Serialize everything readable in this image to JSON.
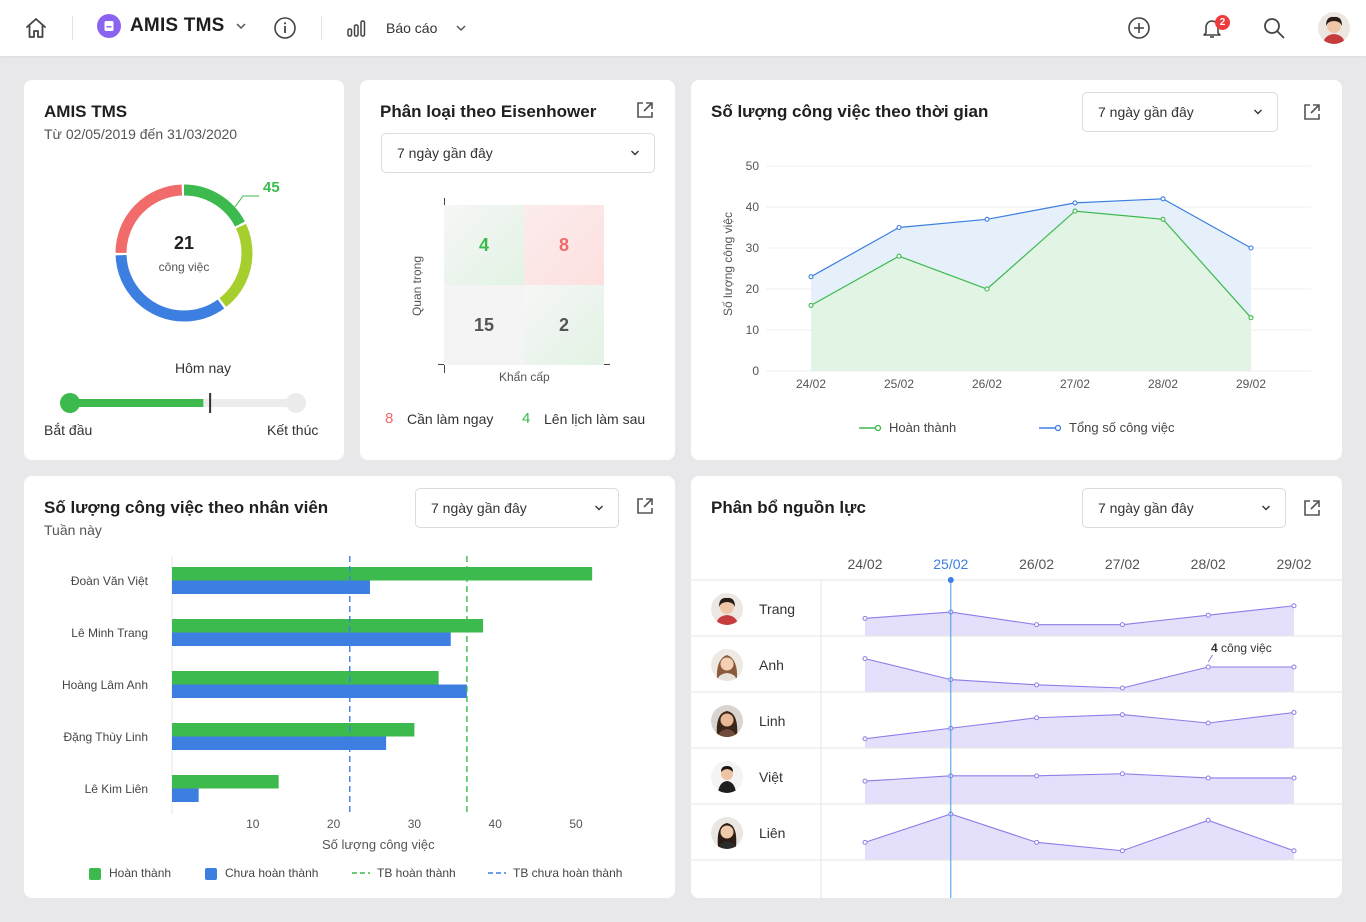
{
  "header": {
    "app_name": "AMIS TMS",
    "report_label": "Báo cáo",
    "notification_count": "2",
    "app_color": "#8a63f0"
  },
  "summary": {
    "title": "AMIS TMS",
    "date_range": "Từ 02/05/2019 đến 31/03/2020",
    "total": "21",
    "total_unit": "công việc",
    "callout_value": "45",
    "today_label": "Hôm nay",
    "start_label": "Bắt đầu",
    "end_label": "Kết thúc",
    "progress_fraction": 0.59,
    "today_fraction": 0.62,
    "donut": [
      {
        "color": "#3dba4e",
        "value": 0.18
      },
      {
        "color": "#a6cf2e",
        "value": 0.22
      },
      {
        "color": "#3d7fe0",
        "value": 0.35
      },
      {
        "color": "#f16b6b",
        "value": 0.25
      }
    ]
  },
  "eisenhower": {
    "title": "Phân loại theo Eisenhower",
    "filter": "7 ngày gần đây",
    "y_label": "Quan trọng",
    "x_label": "Khẩn cấp",
    "cells": {
      "top_left": "4",
      "top_right": "8",
      "bottom_left": "15",
      "bottom_right": "2"
    },
    "legend": [
      {
        "value": "8",
        "label": "Cần làm ngay",
        "color": "#f16b6b"
      },
      {
        "value": "4",
        "label": "Lên lịch làm sau",
        "color": "#3dba4e"
      }
    ]
  },
  "time_chart": {
    "title": "Số lượng công việc theo thời gian",
    "filter": "7 ngày gần đây",
    "legend_done": "Hoàn thành",
    "legend_total": "Tổng số công việc"
  },
  "staff_chart": {
    "title": "Số lượng công việc theo nhân viên",
    "subtitle": "Tuần này",
    "filter": "7 ngày gần đây",
    "legend": {
      "done": "Hoàn thành",
      "undone": "Chưa hoàn thành",
      "avg_done": "TB hoàn thành",
      "avg_undone": "TB chưa hoàn thành"
    }
  },
  "resource": {
    "title": "Phân bổ nguồn lực",
    "filter": "7 ngày gần đây",
    "dates": [
      "24/02",
      "25/02",
      "26/02",
      "27/02",
      "28/02",
      "29/02"
    ],
    "highlight_date_index": 1,
    "tooltip_value": "4",
    "tooltip_text": "công việc",
    "people": [
      "Trang",
      "Anh",
      "Linh",
      "Việt",
      "Liên"
    ]
  },
  "chart_data": [
    {
      "type": "line",
      "title": "Số lượng công việc theo thời gian",
      "categories": [
        "24/02",
        "25/02",
        "26/02",
        "27/02",
        "28/02",
        "29/02"
      ],
      "ylabel": "Số lượng công việc",
      "ylim": [
        0,
        50
      ],
      "yticks": [
        0,
        10,
        20,
        30,
        40,
        50
      ],
      "series": [
        {
          "name": "Hoàn thành",
          "values": [
            16,
            28,
            20,
            39,
            37,
            13
          ],
          "color": "#3dba4e"
        },
        {
          "name": "Tổng số công việc",
          "values": [
            23,
            35,
            37,
            41,
            42,
            30
          ],
          "color": "#3d7fe0"
        }
      ]
    },
    {
      "type": "bar",
      "orientation": "horizontal",
      "title": "Số lượng công việc theo nhân viên",
      "categories": [
        "Đoàn Văn Việt",
        "Lê Minh Trang",
        "Hoàng Lâm Anh",
        "Đặng Thùy Linh",
        "Lê Kim Liên"
      ],
      "xlabel": "Số lượng công việc",
      "xlim": [
        0,
        52
      ],
      "xticks": [
        10,
        20,
        30,
        40,
        50
      ],
      "series": [
        {
          "name": "Hoàn thành",
          "values": [
            52,
            38.5,
            33,
            30,
            13.2
          ],
          "color": "#3dba4e"
        },
        {
          "name": "Chưa hoàn thành",
          "values": [
            24.5,
            34.5,
            36.5,
            26.5,
            3.3
          ],
          "color": "#3d7fe0"
        }
      ],
      "averages": [
        {
          "name": "TB hoàn thành",
          "value": 36.5,
          "color": "#3dba4e"
        },
        {
          "name": "TB chưa hoàn thành",
          "value": 22,
          "color": "#3d7fe0"
        }
      ]
    },
    {
      "type": "area",
      "title": "Phân bổ nguồn lực",
      "categories": [
        "24/02",
        "25/02",
        "26/02",
        "27/02",
        "28/02",
        "29/02"
      ],
      "ylim": [
        0,
        5
      ],
      "series": [
        {
          "name": "Trang",
          "values": [
            1.3,
            1.9,
            0.7,
            0.7,
            1.6,
            2.5
          ]
        },
        {
          "name": "Anh",
          "values": [
            2.8,
            0.8,
            0.3,
            0.0,
            2.0,
            2.0
          ]
        },
        {
          "name": "Linh",
          "values": [
            0.5,
            1.5,
            2.5,
            2.8,
            2.0,
            3.0
          ]
        },
        {
          "name": "Việt",
          "values": [
            1.8,
            2.3,
            2.3,
            2.5,
            2.1,
            2.1
          ]
        },
        {
          "name": "Liên",
          "values": [
            1.3,
            4.0,
            1.3,
            0.5,
            3.4,
            0.5
          ]
        }
      ]
    }
  ]
}
